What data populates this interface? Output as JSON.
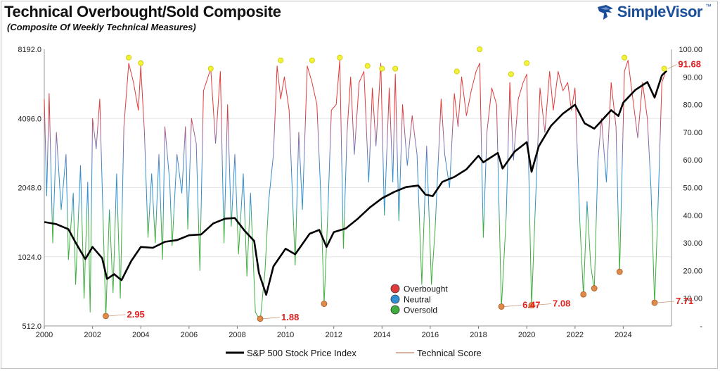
{
  "header": {
    "title": "Technical Overbought/Sold Composite",
    "subtitle": "(Composite Of Weekly Technical Measures)",
    "brand": "SimpleVisor",
    "brand_tm": "™"
  },
  "chart_data": {
    "type": "line",
    "x_ticks": [
      "2000",
      "2002",
      "2004",
      "2006",
      "2008",
      "2010",
      "2012",
      "2014",
      "2016",
      "2018",
      "2020",
      "2022",
      "2024"
    ],
    "y_left": {
      "scale": "log2",
      "range": [
        512,
        8192
      ],
      "ticks": [
        "8192.0",
        "4096.0",
        "2048.0",
        "1024.0",
        "512.0"
      ]
    },
    "y_right": {
      "range": [
        0,
        100
      ],
      "ticks": [
        "100.00",
        "90.00",
        "80.00",
        "70.00",
        "60.00",
        "50.00",
        "40.00",
        "30.00",
        "20.00",
        "10.00",
        "-"
      ]
    },
    "legend_bottom": [
      {
        "label": "S&P 500 Stock Price Index",
        "color": "#000000"
      },
      {
        "label": "Technical Score",
        "color": "#c9967a"
      }
    ],
    "legend_zones": [
      {
        "label": "Overbought",
        "color": "#e03a3a"
      },
      {
        "label": "Neutral",
        "color": "#2f8fd0"
      },
      {
        "label": "Oversold",
        "color": "#3fae3f"
      }
    ],
    "series": [
      {
        "name": "S&P 500 Stock Price Index",
        "unit": "index",
        "points": [
          [
            2000.0,
            1450
          ],
          [
            2000.5,
            1420
          ],
          [
            2001.0,
            1350
          ],
          [
            2001.3,
            1180
          ],
          [
            2001.7,
            1000
          ],
          [
            2002.0,
            1130
          ],
          [
            2002.4,
            1010
          ],
          [
            2002.6,
            820
          ],
          [
            2002.9,
            860
          ],
          [
            2003.2,
            810
          ],
          [
            2003.6,
            980
          ],
          [
            2004.0,
            1130
          ],
          [
            2004.5,
            1120
          ],
          [
            2005.0,
            1190
          ],
          [
            2005.5,
            1210
          ],
          [
            2006.0,
            1270
          ],
          [
            2006.5,
            1280
          ],
          [
            2007.0,
            1430
          ],
          [
            2007.5,
            1500
          ],
          [
            2007.9,
            1510
          ],
          [
            2008.3,
            1330
          ],
          [
            2008.7,
            1200
          ],
          [
            2008.9,
            870
          ],
          [
            2009.2,
            700
          ],
          [
            2009.5,
            930
          ],
          [
            2010.0,
            1110
          ],
          [
            2010.4,
            1050
          ],
          [
            2011.0,
            1290
          ],
          [
            2011.4,
            1340
          ],
          [
            2011.7,
            1130
          ],
          [
            2012.0,
            1310
          ],
          [
            2012.5,
            1360
          ],
          [
            2013.0,
            1500
          ],
          [
            2013.5,
            1680
          ],
          [
            2014.0,
            1840
          ],
          [
            2014.5,
            1960
          ],
          [
            2015.0,
            2060
          ],
          [
            2015.5,
            2090
          ],
          [
            2015.8,
            1910
          ],
          [
            2016.1,
            1880
          ],
          [
            2016.5,
            2170
          ],
          [
            2017.0,
            2280
          ],
          [
            2017.5,
            2460
          ],
          [
            2018.0,
            2820
          ],
          [
            2018.2,
            2640
          ],
          [
            2018.8,
            2900
          ],
          [
            2019.0,
            2480
          ],
          [
            2019.5,
            2940
          ],
          [
            2020.0,
            3230
          ],
          [
            2020.2,
            2400
          ],
          [
            2020.5,
            3100
          ],
          [
            2021.0,
            3800
          ],
          [
            2021.5,
            4300
          ],
          [
            2022.0,
            4700
          ],
          [
            2022.4,
            3900
          ],
          [
            2022.8,
            3700
          ],
          [
            2023.0,
            3900
          ],
          [
            2023.5,
            4450
          ],
          [
            2023.8,
            4200
          ],
          [
            2024.0,
            4800
          ],
          [
            2024.5,
            5450
          ],
          [
            2025.0,
            5900
          ],
          [
            2025.3,
            5050
          ],
          [
            2025.6,
            6300
          ],
          [
            2025.8,
            6600
          ]
        ]
      },
      {
        "name": "Technical Score",
        "unit": "score",
        "points": [
          [
            2000.0,
            82
          ],
          [
            2000.1,
            47
          ],
          [
            2000.2,
            84
          ],
          [
            2000.35,
            30
          ],
          [
            2000.5,
            70
          ],
          [
            2000.7,
            42
          ],
          [
            2000.9,
            62
          ],
          [
            2001.0,
            24
          ],
          [
            2001.2,
            48
          ],
          [
            2001.3,
            15
          ],
          [
            2001.5,
            58
          ],
          [
            2001.65,
            10
          ],
          [
            2001.8,
            52
          ],
          [
            2001.9,
            5
          ],
          [
            2002.0,
            75
          ],
          [
            2002.15,
            64
          ],
          [
            2002.3,
            82
          ],
          [
            2002.55,
            2.95
          ],
          [
            2002.7,
            42
          ],
          [
            2002.85,
            12
          ],
          [
            2003.0,
            55
          ],
          [
            2003.15,
            10
          ],
          [
            2003.3,
            72
          ],
          [
            2003.5,
            95
          ],
          [
            2003.7,
            88
          ],
          [
            2003.9,
            78
          ],
          [
            2004.0,
            94
          ],
          [
            2004.15,
            70
          ],
          [
            2004.3,
            32
          ],
          [
            2004.45,
            55
          ],
          [
            2004.6,
            30
          ],
          [
            2004.75,
            62
          ],
          [
            2004.9,
            24
          ],
          [
            2005.0,
            72
          ],
          [
            2005.2,
            52
          ],
          [
            2005.3,
            29
          ],
          [
            2005.5,
            62
          ],
          [
            2005.7,
            48
          ],
          [
            2005.85,
            72
          ],
          [
            2005.95,
            35
          ],
          [
            2006.1,
            75
          ],
          [
            2006.3,
            66
          ],
          [
            2006.45,
            20
          ],
          [
            2006.6,
            85
          ],
          [
            2006.9,
            93
          ],
          [
            2007.1,
            66
          ],
          [
            2007.3,
            92
          ],
          [
            2007.45,
            30
          ],
          [
            2007.6,
            80
          ],
          [
            2007.75,
            36
          ],
          [
            2007.9,
            62
          ],
          [
            2008.05,
            26
          ],
          [
            2008.25,
            55
          ],
          [
            2008.4,
            18
          ],
          [
            2008.55,
            48
          ],
          [
            2008.75,
            5
          ],
          [
            2008.95,
            1.88
          ],
          [
            2009.15,
            20
          ],
          [
            2009.3,
            45
          ],
          [
            2009.5,
            62
          ],
          [
            2009.65,
            94
          ],
          [
            2009.8,
            82
          ],
          [
            2009.95,
            90
          ],
          [
            2010.15,
            78
          ],
          [
            2010.4,
            22
          ],
          [
            2010.55,
            70
          ],
          [
            2010.7,
            42
          ],
          [
            2010.9,
            94
          ],
          [
            2011.1,
            88
          ],
          [
            2011.3,
            80
          ],
          [
            2011.45,
            50
          ],
          [
            2011.6,
            8
          ],
          [
            2011.75,
            40
          ],
          [
            2011.9,
            78
          ],
          [
            2012.1,
            80
          ],
          [
            2012.25,
            96
          ],
          [
            2012.4,
            28
          ],
          [
            2012.55,
            70
          ],
          [
            2012.7,
            90
          ],
          [
            2012.85,
            62
          ],
          [
            2013.05,
            88
          ],
          [
            2013.25,
            92
          ],
          [
            2013.45,
            52
          ],
          [
            2013.6,
            86
          ],
          [
            2013.75,
            65
          ],
          [
            2013.95,
            95
          ],
          [
            2014.1,
            40
          ],
          [
            2014.3,
            86
          ],
          [
            2014.45,
            52
          ],
          [
            2014.55,
            91
          ],
          [
            2014.7,
            38
          ],
          [
            2014.85,
            80
          ],
          [
            2015.05,
            58
          ],
          [
            2015.25,
            76
          ],
          [
            2015.45,
            62
          ],
          [
            2015.65,
            15
          ],
          [
            2015.85,
            65
          ],
          [
            2016.05,
            15
          ],
          [
            2016.2,
            35
          ],
          [
            2016.45,
            82
          ],
          [
            2016.6,
            62
          ],
          [
            2016.8,
            50
          ],
          [
            2017.0,
            84
          ],
          [
            2017.15,
            72
          ],
          [
            2017.3,
            90
          ],
          [
            2017.5,
            76
          ],
          [
            2017.7,
            85
          ],
          [
            2017.9,
            92
          ],
          [
            2018.05,
            95
          ],
          [
            2018.2,
            32
          ],
          [
            2018.35,
            70
          ],
          [
            2018.55,
            86
          ],
          [
            2018.75,
            80
          ],
          [
            2018.95,
            6.47
          ],
          [
            2019.15,
            40
          ],
          [
            2019.3,
            88
          ],
          [
            2019.45,
            60
          ],
          [
            2019.65,
            82
          ],
          [
            2019.85,
            88
          ],
          [
            2020.0,
            91
          ],
          [
            2020.2,
            7.08
          ],
          [
            2020.35,
            42
          ],
          [
            2020.55,
            86
          ],
          [
            2020.75,
            70
          ],
          [
            2020.95,
            92
          ],
          [
            2021.1,
            78
          ],
          [
            2021.3,
            92
          ],
          [
            2021.5,
            85
          ],
          [
            2021.7,
            88
          ],
          [
            2021.85,
            78
          ],
          [
            2022.0,
            86
          ],
          [
            2022.2,
            38
          ],
          [
            2022.35,
            11
          ],
          [
            2022.5,
            45
          ],
          [
            2022.65,
            22
          ],
          [
            2022.8,
            13
          ],
          [
            2022.95,
            60
          ],
          [
            2023.1,
            75
          ],
          [
            2023.3,
            52
          ],
          [
            2023.5,
            88
          ],
          [
            2023.7,
            72
          ],
          [
            2023.85,
            19
          ],
          [
            2024.05,
            92
          ],
          [
            2024.2,
            96
          ],
          [
            2024.4,
            82
          ],
          [
            2024.6,
            68
          ],
          [
            2024.8,
            88
          ],
          [
            2025.0,
            75
          ],
          [
            2025.15,
            50
          ],
          [
            2025.3,
            7.71
          ],
          [
            2025.45,
            45
          ],
          [
            2025.6,
            88
          ],
          [
            2025.75,
            91.68
          ]
        ]
      }
    ],
    "markers": [
      {
        "x": 2003.5,
        "y": 97,
        "zone": "overbought_peak"
      },
      {
        "x": 2004.0,
        "y": 95,
        "zone": "overbought_peak"
      },
      {
        "x": 2006.9,
        "y": 93,
        "zone": "overbought_peak"
      },
      {
        "x": 2009.8,
        "y": 96,
        "zone": "overbought_peak"
      },
      {
        "x": 2011.1,
        "y": 96,
        "zone": "overbought_peak"
      },
      {
        "x": 2012.25,
        "y": 97,
        "zone": "overbought_peak"
      },
      {
        "x": 2013.4,
        "y": 94,
        "zone": "overbought_peak"
      },
      {
        "x": 2014.0,
        "y": 93,
        "zone": "overbought_peak"
      },
      {
        "x": 2014.55,
        "y": 93,
        "zone": "overbought_peak"
      },
      {
        "x": 2017.1,
        "y": 92,
        "zone": "overbought_peak"
      },
      {
        "x": 2018.05,
        "y": 100,
        "zone": "overbought_peak"
      },
      {
        "x": 2019.35,
        "y": 91,
        "zone": "overbought_peak"
      },
      {
        "x": 2020.0,
        "y": 95,
        "zone": "overbought_peak"
      },
      {
        "x": 2024.05,
        "y": 97,
        "zone": "overbought_peak"
      },
      {
        "x": 2025.7,
        "y": 93,
        "zone": "overbought_peak"
      },
      {
        "x": 2002.55,
        "y": 3.6,
        "zone": "oversold_trough"
      },
      {
        "x": 2008.95,
        "y": 2.6,
        "zone": "oversold_trough"
      },
      {
        "x": 2011.6,
        "y": 8,
        "zone": "oversold_trough"
      },
      {
        "x": 2018.95,
        "y": 7,
        "zone": "oversold_trough"
      },
      {
        "x": 2020.2,
        "y": 7.5,
        "zone": "oversold_trough"
      },
      {
        "x": 2022.35,
        "y": 11.4,
        "zone": "oversold_trough"
      },
      {
        "x": 2022.8,
        "y": 13.6,
        "zone": "oversold_trough"
      },
      {
        "x": 2023.85,
        "y": 19.6,
        "zone": "oversold_trough"
      },
      {
        "x": 2025.3,
        "y": 8.4,
        "zone": "oversold_trough"
      }
    ],
    "annotations": [
      {
        "text": "2.95",
        "x": 2002.55,
        "y": 3.6
      },
      {
        "text": "1.88",
        "x": 2008.95,
        "y": 2.6
      },
      {
        "text": "6.47",
        "x": 2018.95,
        "y": 7
      },
      {
        "text": "7.08",
        "x": 2020.2,
        "y": 7.5
      },
      {
        "text": "7.71",
        "x": 2025.3,
        "y": 8.4
      },
      {
        "text": "91.68",
        "x": 2025.75,
        "y": 93
      }
    ]
  }
}
